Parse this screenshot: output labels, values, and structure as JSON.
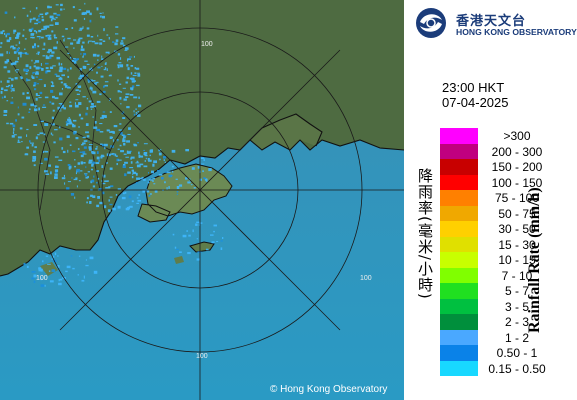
{
  "organization": {
    "name_zh": "香港天文台",
    "name_en": "HONG KONG OBSERVATORY",
    "brand_color": "#1b3c7a"
  },
  "time_label": "23:00 HKT",
  "date_label": "07-04-2025",
  "legend": {
    "title_zh": "降雨率(毫米/小時)",
    "title_en": "Rainfall Rate (mm/h)",
    "items": [
      {
        "label": ">300",
        "color": "#ff00ff"
      },
      {
        "label": "200 - 300",
        "color": "#c0007f"
      },
      {
        "label": "150 - 200",
        "color": "#c80000"
      },
      {
        "label": "100 - 150",
        "color": "#ff0000"
      },
      {
        "label": "75 - 100",
        "color": "#ff8000"
      },
      {
        "label": "50 - 75",
        "color": "#f0a800"
      },
      {
        "label": "30 - 50",
        "color": "#ffd000"
      },
      {
        "label": "15 - 30",
        "color": "#e0e000"
      },
      {
        "label": "10 - 15",
        "color": "#c8ff00"
      },
      {
        "label": "7 - 10",
        "color": "#80ff00"
      },
      {
        "label": "5 - 7",
        "color": "#20e020"
      },
      {
        "label": "3 - 5",
        "color": "#00c040"
      },
      {
        "label": "2 - 3",
        "color": "#008f3c"
      },
      {
        "label": "1 - 2",
        "color": "#4aa8ff"
      },
      {
        "label": "0.50 - 1",
        "color": "#0a82e8"
      },
      {
        "label": "0.15 - 0.50",
        "color": "#18d8ff"
      }
    ]
  },
  "range_ring_labels": [
    "100",
    "100",
    "100",
    "100"
  ],
  "copyright": "© Hong Kong Observatory",
  "map_colors": {
    "sea": "#2c9bc5",
    "land": "#4d6a40",
    "rain": "#3fb8ff",
    "coast": "#111111"
  }
}
